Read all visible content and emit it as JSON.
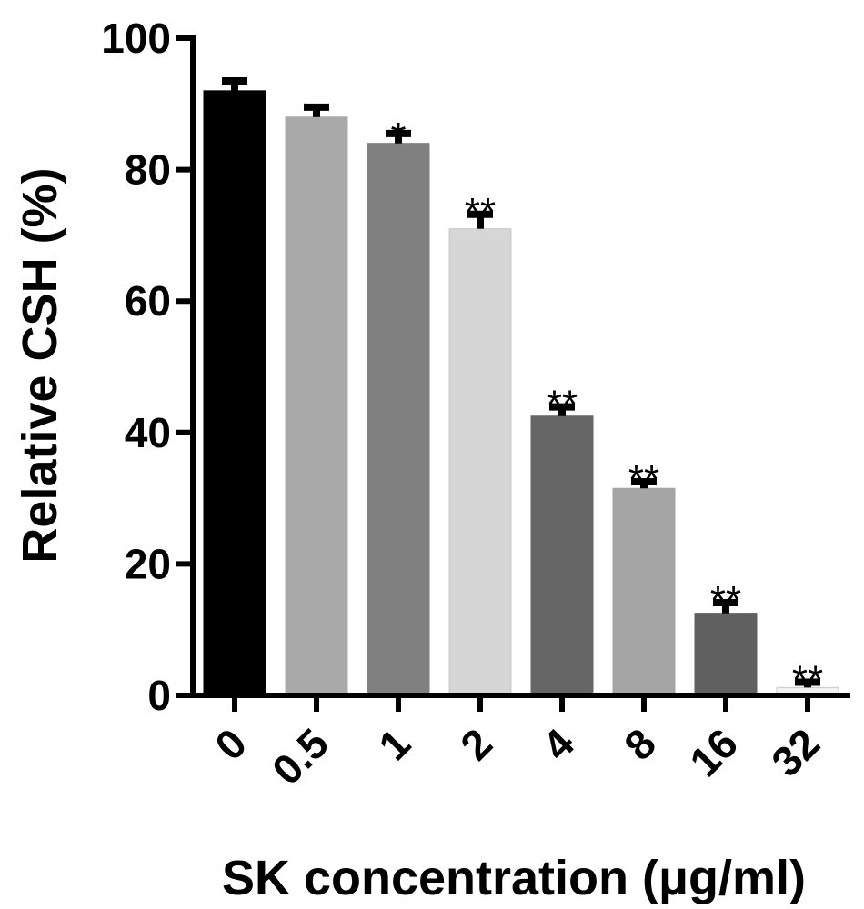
{
  "chart_data": {
    "type": "bar",
    "categories": [
      "0",
      "0.5",
      "1",
      "2",
      "4",
      "8",
      "16",
      "32"
    ],
    "values": [
      92,
      88,
      84,
      71,
      42.5,
      31.5,
      12.5,
      1.2
    ],
    "errors": [
      1.5,
      1.5,
      1.5,
      2.2,
      1.4,
      1.0,
      1.6,
      0.8
    ],
    "significance": [
      "",
      "",
      "*",
      "**",
      "**",
      "**",
      "**",
      "**"
    ],
    "colors": [
      "#000000",
      "#a9a9a9",
      "#808080",
      "#d6d6d6",
      "#666666",
      "#a5a5a5",
      "#606060",
      "#f2f2f2"
    ],
    "xlabel": "SK concentration (μg/ml)",
    "ylabel": "Relative CSH (%)",
    "ylim": [
      0,
      100
    ],
    "yticks": [
      0,
      20,
      40,
      60,
      80,
      100
    ],
    "grid": false,
    "legend": "none"
  }
}
